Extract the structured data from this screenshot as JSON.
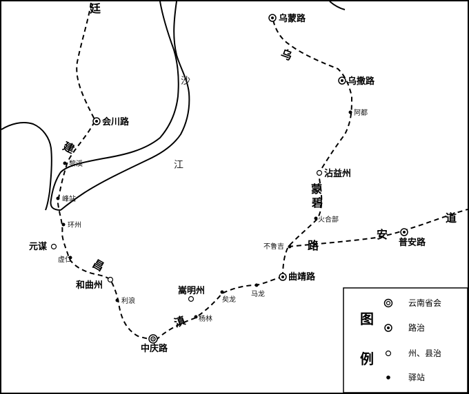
{
  "route_chars": {
    "north_edge": "廷",
    "wu1": "乌",
    "meng": "蒙",
    "jian": "建",
    "chang": "昌",
    "dian": "滇",
    "lu": "路",
    "an": "安",
    "bi": "碧",
    "dao": "道"
  },
  "river": {
    "sha": "沙",
    "jiang": "江"
  },
  "places": {
    "wumeng": "乌蒙路",
    "wusa": "乌撒路",
    "huichuan": "会川路",
    "abu": "阿都",
    "zhanyi": "沾益州",
    "lixi": "黎溪",
    "xuzhan": "峰站",
    "huozhou": "环州",
    "yuanmou": "元谋",
    "huohe": "火合部",
    "buluji": "不鲁吉",
    "puan": "普安路",
    "zuren": "虚仁",
    "heqiu": "和曲州",
    "qujing": "曲靖路",
    "songming": "嵩明州",
    "yilong": "矣龙",
    "malong": "马龙",
    "yanglang": "利浪",
    "yanglin": "杨林",
    "zhongqing": "中庆路"
  },
  "legend": {
    "title_1": "图",
    "title_2": "例",
    "capital": "云南省会",
    "lu_seat": "路治",
    "zhou_seat": "州、县治",
    "post_station": "驿站"
  }
}
